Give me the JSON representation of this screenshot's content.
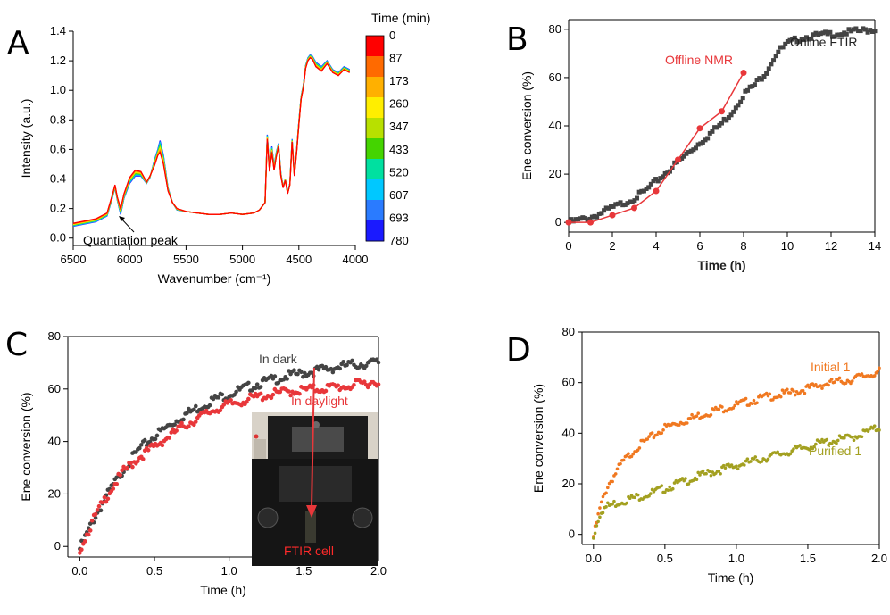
{
  "panels": {
    "A": {
      "letter": "A"
    },
    "B": {
      "letter": "B"
    },
    "C": {
      "letter": "C"
    },
    "D": {
      "letter": "D"
    }
  },
  "chart_data": [
    {
      "panel": "A",
      "type": "line",
      "xlabel": "Wavenumber (cm⁻¹)",
      "ylabel": "Intensity (a.u.)",
      "xlim": [
        6500,
        4000
      ],
      "ylim": [
        -0.05,
        1.4
      ],
      "x_reversed": true,
      "xticks": [
        "6500",
        "6000",
        "5500",
        "5000",
        "4500",
        "4000"
      ],
      "yticks": [
        "0.0",
        "0.2",
        "0.4",
        "0.6",
        "0.8",
        "1.0",
        "1.2",
        "1.4"
      ],
      "annotation": "Quantiation peak",
      "colorbar": {
        "title": "Time (min)",
        "labels": [
          "0",
          "87",
          "173",
          "260",
          "347",
          "433",
          "520",
          "607",
          "693",
          "780"
        ],
        "colors": [
          "#ff0000",
          "#ff6a00",
          "#ffb000",
          "#ffee00",
          "#b8e000",
          "#44d400",
          "#00e0a0",
          "#00c8ff",
          "#2a7bff",
          "#1a1aff"
        ]
      },
      "spectrum_x": [
        6500,
        6300,
        6200,
        6150,
        6130,
        6110,
        6080,
        6050,
        6000,
        5950,
        5900,
        5850,
        5820,
        5780,
        5750,
        5730,
        5700,
        5660,
        5620,
        5580,
        5500,
        5400,
        5300,
        5200,
        5100,
        5000,
        4900,
        4850,
        4800,
        4780,
        4760,
        4740,
        4720,
        4700,
        4680,
        4660,
        4640,
        4620,
        4600,
        4580,
        4560,
        4540,
        4520,
        4500,
        4480,
        4460,
        4440,
        4420,
        4400,
        4380,
        4350,
        4300,
        4250,
        4200,
        4150,
        4100,
        4050
      ],
      "spectrum_y_t0": [
        0.1,
        0.13,
        0.17,
        0.3,
        0.36,
        0.28,
        0.2,
        0.3,
        0.41,
        0.46,
        0.45,
        0.38,
        0.42,
        0.49,
        0.56,
        0.58,
        0.5,
        0.32,
        0.24,
        0.2,
        0.18,
        0.17,
        0.16,
        0.16,
        0.17,
        0.16,
        0.17,
        0.19,
        0.24,
        0.67,
        0.45,
        0.58,
        0.46,
        0.55,
        0.62,
        0.42,
        0.34,
        0.39,
        0.3,
        0.36,
        0.65,
        0.42,
        0.58,
        0.77,
        0.94,
        1.02,
        1.15,
        1.2,
        1.22,
        1.21,
        1.16,
        1.13,
        1.18,
        1.12,
        1.1,
        1.14,
        1.12
      ],
      "spectrum_y_t780": [
        0.08,
        0.11,
        0.15,
        0.28,
        0.34,
        0.26,
        0.16,
        0.27,
        0.37,
        0.42,
        0.42,
        0.37,
        0.41,
        0.53,
        0.6,
        0.66,
        0.56,
        0.34,
        0.24,
        0.19,
        0.18,
        0.17,
        0.16,
        0.16,
        0.17,
        0.16,
        0.17,
        0.19,
        0.24,
        0.7,
        0.47,
        0.62,
        0.49,
        0.58,
        0.64,
        0.44,
        0.35,
        0.4,
        0.31,
        0.37,
        0.67,
        0.44,
        0.6,
        0.79,
        0.96,
        1.04,
        1.17,
        1.22,
        1.24,
        1.23,
        1.19,
        1.16,
        1.2,
        1.14,
        1.12,
        1.16,
        1.14
      ]
    },
    {
      "panel": "B",
      "type": "line",
      "xlabel": "Time (h)",
      "ylabel": "Ene conversion (%)",
      "xlim": [
        0,
        14
      ],
      "ylim": [
        -4,
        84
      ],
      "xticks": [
        0,
        2,
        4,
        6,
        8,
        10,
        12,
        14
      ],
      "yticks": [
        0,
        20,
        40,
        60,
        80
      ],
      "series": [
        {
          "name": "Online FTIR",
          "color": "#444444",
          "marker": "square",
          "curve_x": [
            0,
            0.5,
            1,
            1.5,
            2,
            2.5,
            3,
            3.5,
            4,
            4.5,
            5,
            5.5,
            6,
            6.5,
            7,
            7.5,
            8,
            8.5,
            9,
            9.5,
            10,
            10.5,
            11,
            11.5,
            12,
            12.5,
            13,
            13.5,
            14
          ],
          "curve_y": [
            0,
            1,
            2,
            4,
            6,
            8,
            10,
            13,
            17,
            21,
            25,
            29,
            33,
            37,
            41,
            46,
            53,
            57,
            62,
            70,
            74,
            76,
            77,
            77.5,
            78,
            78.5,
            79,
            79.5,
            80
          ]
        },
        {
          "name": "Offline NMR",
          "color": "#e8373a",
          "marker": "circle",
          "x": [
            0,
            1,
            2,
            3,
            4,
            5,
            6,
            7,
            8
          ],
          "y": [
            0,
            0,
            3,
            6,
            13,
            26,
            39,
            46,
            62
          ]
        }
      ]
    },
    {
      "panel": "C",
      "type": "scatter",
      "xlabel": "Time (h)",
      "ylabel": "Ene conversion (%)",
      "xlim": [
        -0.08,
        2.0
      ],
      "ylim": [
        -4,
        80
      ],
      "xticks": [
        "0.0",
        "0.5",
        "1.0",
        "1.5",
        "2.0"
      ],
      "yticks": [
        0,
        20,
        40,
        60,
        80
      ],
      "inset_label": "FTIR cell",
      "series": [
        {
          "name": "In dark",
          "color": "#444444",
          "curve_x": [
            0,
            0.1,
            0.2,
            0.3,
            0.4,
            0.5,
            0.6,
            0.7,
            0.8,
            0.9,
            1.0,
            1.2,
            1.4,
            1.6,
            1.8,
            2.0
          ],
          "curve_y": [
            0,
            12,
            22,
            31,
            38,
            43,
            47,
            51,
            54,
            57,
            59,
            63,
            66,
            68,
            70,
            71
          ]
        },
        {
          "name": "In daylight",
          "color": "#e8373a",
          "curve_x": [
            0,
            0.1,
            0.2,
            0.3,
            0.4,
            0.5,
            0.6,
            0.7,
            0.8,
            0.9,
            1.0,
            1.2,
            1.4,
            1.6,
            1.8,
            2.0
          ],
          "curve_y": [
            0,
            12,
            22,
            30,
            35,
            39,
            43,
            47,
            50,
            53,
            55,
            58,
            60,
            61,
            62,
            64
          ]
        }
      ]
    },
    {
      "panel": "D",
      "type": "scatter",
      "xlabel": "Time (h)",
      "ylabel": "Ene conversion (%)",
      "xlim": [
        -0.08,
        2.0
      ],
      "ylim": [
        -4,
        80
      ],
      "xticks": [
        "0.0",
        "0.5",
        "1.0",
        "1.5",
        "2.0"
      ],
      "yticks": [
        0,
        20,
        40,
        60,
        80
      ],
      "series": [
        {
          "name": "Initial 1",
          "color": "#f07820",
          "curve_x": [
            0,
            0.05,
            0.1,
            0.2,
            0.3,
            0.4,
            0.5,
            0.6,
            0.8,
            1.0,
            1.2,
            1.4,
            1.6,
            1.8,
            2.0
          ],
          "curve_y": [
            0,
            12,
            20,
            29,
            35,
            39,
            43,
            45,
            49,
            52,
            55,
            57,
            60,
            62,
            65
          ]
        },
        {
          "name": "Purified 1",
          "color": "#a3a020",
          "curve_x": [
            0,
            0.05,
            0.1,
            0.2,
            0.4,
            0.6,
            0.8,
            1.0,
            1.2,
            1.4,
            1.6,
            1.8,
            2.0
          ],
          "curve_y": [
            0,
            10,
            12,
            14,
            17,
            21,
            25,
            28,
            31,
            34,
            37,
            39,
            43
          ]
        }
      ]
    }
  ]
}
